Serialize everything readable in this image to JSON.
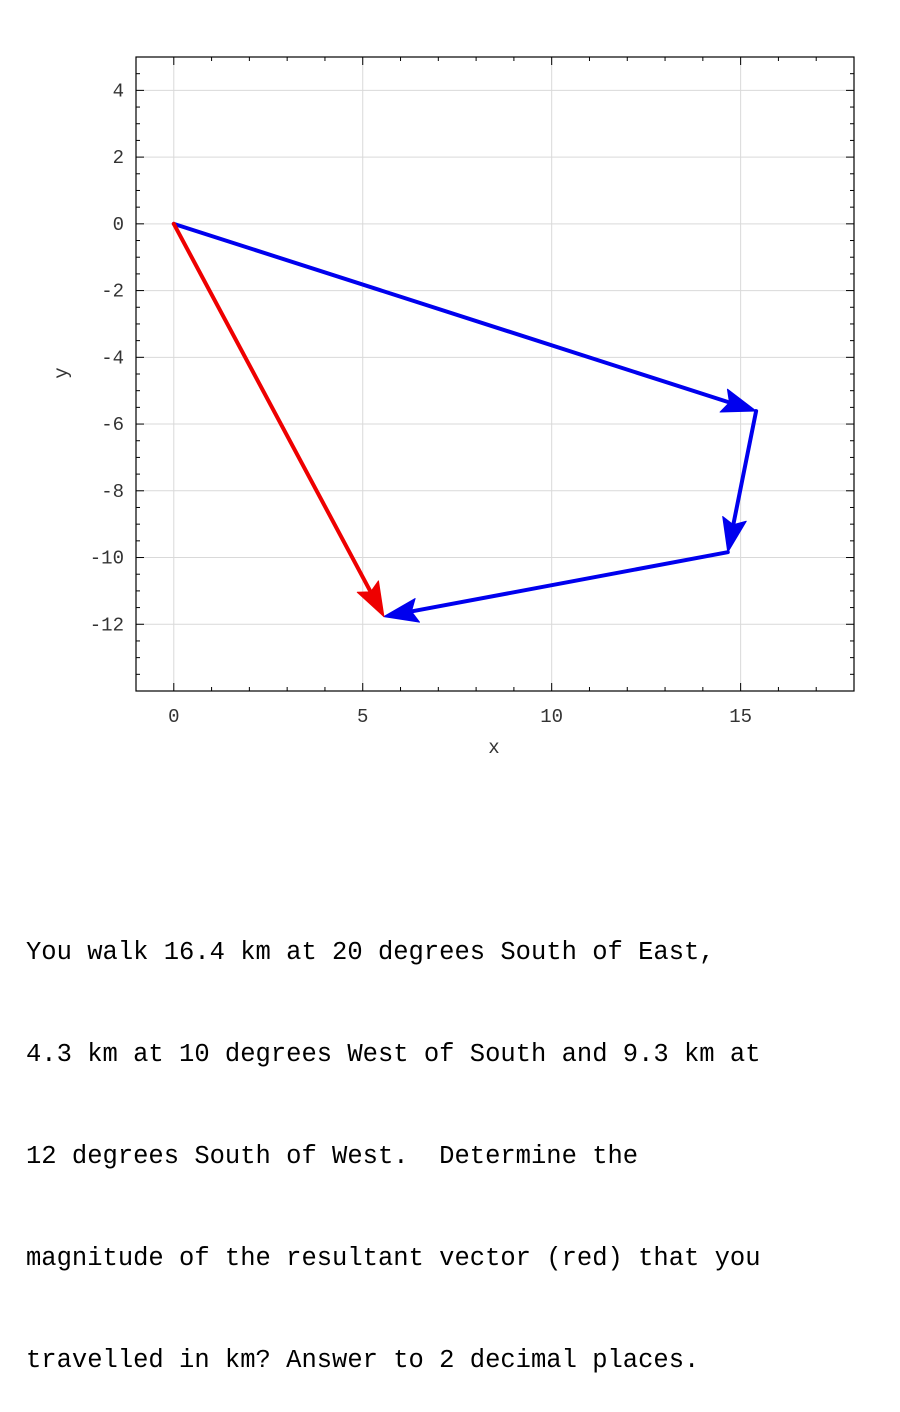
{
  "chart_data": {
    "type": "vector",
    "xlabel": "x",
    "ylabel": "y",
    "xlim": [
      -1,
      18
    ],
    "ylim": [
      -14,
      5
    ],
    "xticks": [
      0,
      5,
      10,
      15
    ],
    "yticks": [
      4,
      2,
      0,
      -2,
      -4,
      -6,
      -8,
      -10,
      -12
    ],
    "xtick_labels": [
      "0",
      "5",
      "10",
      "15"
    ],
    "ytick_labels": [
      "4",
      "2",
      "0",
      "-2",
      "-4",
      "-6",
      "-8",
      "-10",
      "-12"
    ],
    "grid": true,
    "vectors": [
      {
        "from": [
          0,
          0
        ],
        "to": [
          15.41,
          -5.61
        ],
        "color": "#0000ee"
      },
      {
        "from": [
          15.41,
          -5.61
        ],
        "to": [
          14.66,
          -9.84
        ],
        "color": "#0000ee"
      },
      {
        "from": [
          14.66,
          -9.84
        ],
        "to": [
          5.56,
          -11.77
        ],
        "color": "#0000ee"
      },
      {
        "from": [
          0,
          0
        ],
        "to": [
          5.56,
          -11.77
        ],
        "color": "#ee0000"
      }
    ]
  },
  "question": {
    "lines": [
      "You walk 16.4 km at 20 degrees South of East,",
      "4.3 km at 10 degrees West of South and 9.3 km at",
      "12 degrees South of West.  Determine the",
      "magnitude of the resultant vector (red) that you",
      "travelled in km? Answer to 2 decimal places."
    ]
  }
}
